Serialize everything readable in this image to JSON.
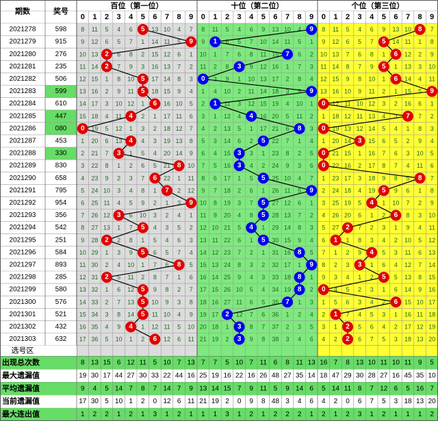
{
  "headers": {
    "period": "期数",
    "number": "奖号",
    "groups": [
      "百位（第一位）",
      "十位（第二位）",
      "个位（第三位）"
    ],
    "digits": [
      "0",
      "1",
      "2",
      "3",
      "4",
      "5",
      "6",
      "7",
      "8",
      "9"
    ]
  },
  "colors": {
    "hundreds_bg": "#dcdcdc",
    "tens_bg": "#7fe87f",
    "units_bg": "#ffff33",
    "red_ball": "#e00000",
    "blue_ball": "#0000ee",
    "line": "#000000",
    "green_cell": "#66dd66",
    "stat_green": "#66dd66"
  },
  "chart_data": {
    "type": "table",
    "periods": [
      "2021278",
      "2021279",
      "2021280",
      "2021281",
      "2021282",
      "2021283",
      "2021284",
      "2021285",
      "2021286",
      "2021287",
      "2021288",
      "2021289",
      "2021290",
      "2021291",
      "2021292",
      "2021293",
      "2021294",
      "2021295",
      "2021296",
      "2021297",
      "2021298",
      "2021299",
      "2021300",
      "2021301",
      "2021302",
      "2021303"
    ],
    "numbers": [
      "598",
      "915",
      "276",
      "235",
      "506",
      "599",
      "610",
      "447",
      "080",
      "453",
      "330",
      "830",
      "658",
      "795",
      "954",
      "356",
      "542",
      "251",
      "584",
      "893",
      "285",
      "580",
      "576",
      "521",
      "432",
      "632"
    ],
    "highlighted_numbers": [
      "599",
      "447",
      "080",
      "330"
    ],
    "selection_row_label": "选号区",
    "stats": {
      "labels": [
        "出现总次数",
        "最大遗漏值",
        "平均遗漏值",
        "当前遗漏值",
        "最大连出值"
      ],
      "rows": [
        [
          8,
          13,
          15,
          6,
          12,
          11,
          5,
          10,
          7,
          13,
          7,
          7,
          5,
          10,
          7,
          11,
          6,
          8,
          11,
          13,
          16,
          7,
          8,
          13,
          10,
          11,
          10,
          11,
          9,
          5
        ],
        [
          19,
          30,
          17,
          44,
          27,
          30,
          33,
          22,
          44,
          16,
          25,
          19,
          16,
          22,
          16,
          26,
          48,
          27,
          35,
          14,
          18,
          47,
          29,
          30,
          28,
          27,
          16,
          45,
          35,
          10
        ],
        [
          9,
          4,
          5,
          14,
          7,
          8,
          7,
          14,
          7,
          9,
          13,
          14,
          15,
          7,
          9,
          11,
          5,
          9,
          14,
          6,
          5,
          14,
          11,
          8,
          7,
          12,
          6,
          5,
          16,
          7
        ],
        [
          17,
          30,
          5,
          10,
          1,
          2,
          0,
          12,
          6,
          11,
          21,
          19,
          2,
          0,
          9,
          8,
          48,
          3,
          4,
          6,
          4,
          2,
          0,
          6,
          7,
          5,
          3,
          18,
          13,
          20
        ],
        [
          1,
          2,
          2,
          1,
          2,
          1,
          3,
          1,
          2,
          1,
          1,
          1,
          3,
          1,
          2,
          1,
          2,
          2,
          2,
          1,
          2,
          1,
          2,
          3,
          1,
          2,
          1,
          1,
          1,
          2
        ]
      ]
    }
  }
}
